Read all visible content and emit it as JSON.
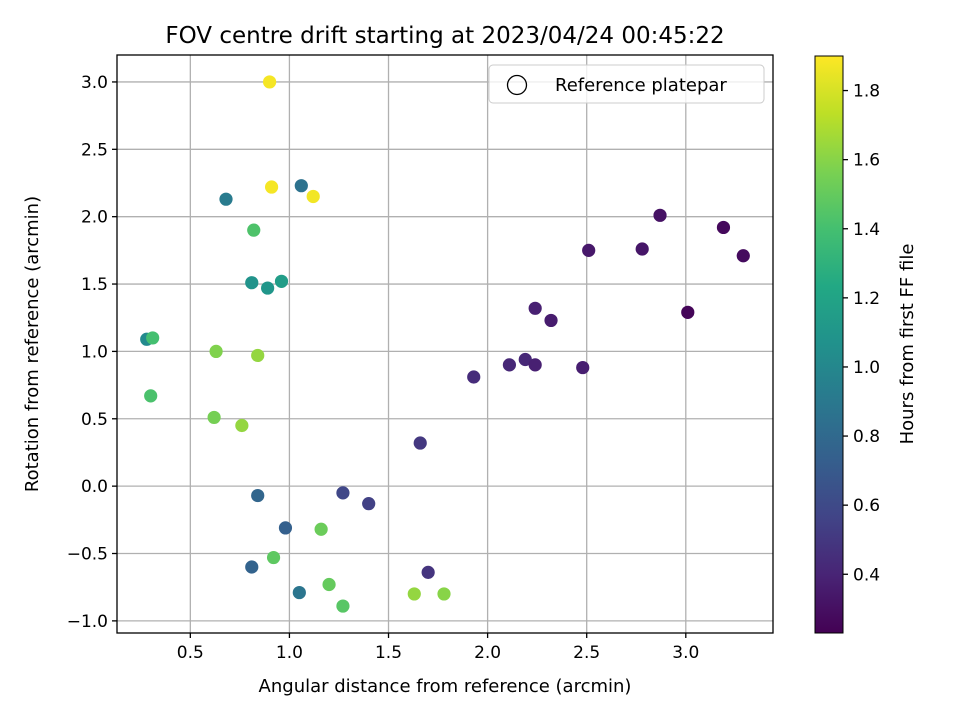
{
  "chart_data": {
    "type": "scatter",
    "title": "FOV centre drift starting at 2023/04/24 00:45:22",
    "xlabel": "Angular distance from reference (arcmin)",
    "ylabel": "Rotation from reference (arcmin)",
    "xlim": [
      0.13,
      3.44
    ],
    "ylim": [
      -1.09,
      3.2
    ],
    "xticks": [
      0.5,
      1.0,
      1.5,
      2.0,
      2.5,
      3.0
    ],
    "xtick_labels": [
      "0.5",
      "1.0",
      "1.5",
      "2.0",
      "2.5",
      "3.0"
    ],
    "yticks": [
      -1.0,
      -0.5,
      0.0,
      0.5,
      1.0,
      1.5,
      2.0,
      2.5,
      3.0
    ],
    "ytick_labels": [
      "−1.0",
      "−0.5",
      "0.0",
      "0.5",
      "1.0",
      "1.5",
      "2.0",
      "2.5",
      "3.0"
    ],
    "grid": true,
    "legend": {
      "position": "top-right",
      "entries": [
        "Reference platepar"
      ]
    },
    "colorbar": {
      "label": "Hours from first FF file",
      "range": [
        0.23,
        1.9
      ],
      "ticks": [
        0.4,
        0.6,
        0.8,
        1.0,
        1.2,
        1.4,
        1.6,
        1.8
      ],
      "tick_labels": [
        "0.4",
        "0.6",
        "0.8",
        "1.0",
        "1.2",
        "1.4",
        "1.6",
        "1.8"
      ],
      "colormap": "viridis"
    },
    "points": [
      {
        "x": 0.9,
        "y": 3.0,
        "c": 1.88
      },
      {
        "x": 0.91,
        "y": 2.22,
        "c": 1.88
      },
      {
        "x": 1.12,
        "y": 2.15,
        "c": 1.87
      },
      {
        "x": 1.06,
        "y": 2.23,
        "c": 0.86
      },
      {
        "x": 0.68,
        "y": 2.13,
        "c": 0.92
      },
      {
        "x": 0.82,
        "y": 1.9,
        "c": 1.43
      },
      {
        "x": 0.81,
        "y": 1.51,
        "c": 1.08
      },
      {
        "x": 0.89,
        "y": 1.47,
        "c": 1.1
      },
      {
        "x": 0.96,
        "y": 1.52,
        "c": 1.15
      },
      {
        "x": 0.28,
        "y": 1.09,
        "c": 1.02
      },
      {
        "x": 0.31,
        "y": 1.1,
        "c": 1.4
      },
      {
        "x": 0.63,
        "y": 1.0,
        "c": 1.58
      },
      {
        "x": 0.84,
        "y": 0.97,
        "c": 1.63
      },
      {
        "x": 0.3,
        "y": 0.67,
        "c": 1.42
      },
      {
        "x": 0.62,
        "y": 0.51,
        "c": 1.55
      },
      {
        "x": 0.76,
        "y": 0.45,
        "c": 1.63
      },
      {
        "x": 0.84,
        "y": -0.07,
        "c": 0.78
      },
      {
        "x": 0.98,
        "y": -0.31,
        "c": 0.74
      },
      {
        "x": 0.81,
        "y": -0.6,
        "c": 0.76
      },
      {
        "x": 0.92,
        "y": -0.53,
        "c": 1.48
      },
      {
        "x": 1.05,
        "y": -0.79,
        "c": 0.88
      },
      {
        "x": 1.16,
        "y": -0.32,
        "c": 1.52
      },
      {
        "x": 1.2,
        "y": -0.73,
        "c": 1.5
      },
      {
        "x": 1.27,
        "y": -0.89,
        "c": 1.46
      },
      {
        "x": 1.27,
        "y": -0.05,
        "c": 0.58
      },
      {
        "x": 1.4,
        "y": -0.13,
        "c": 0.55
      },
      {
        "x": 1.63,
        "y": -0.8,
        "c": 1.63
      },
      {
        "x": 1.78,
        "y": -0.8,
        "c": 1.6
      },
      {
        "x": 1.7,
        "y": -0.64,
        "c": 0.48
      },
      {
        "x": 1.66,
        "y": 0.32,
        "c": 0.5
      },
      {
        "x": 1.93,
        "y": 0.81,
        "c": 0.44
      },
      {
        "x": 2.11,
        "y": 0.9,
        "c": 0.42
      },
      {
        "x": 2.19,
        "y": 0.94,
        "c": 0.42
      },
      {
        "x": 2.24,
        "y": 0.9,
        "c": 0.38
      },
      {
        "x": 2.24,
        "y": 1.32,
        "c": 0.38
      },
      {
        "x": 2.32,
        "y": 1.23,
        "c": 0.36
      },
      {
        "x": 2.48,
        "y": 0.88,
        "c": 0.37
      },
      {
        "x": 2.51,
        "y": 1.75,
        "c": 0.34
      },
      {
        "x": 2.78,
        "y": 1.76,
        "c": 0.33
      },
      {
        "x": 2.87,
        "y": 2.01,
        "c": 0.31
      },
      {
        "x": 3.01,
        "y": 1.29,
        "c": 0.25
      },
      {
        "x": 3.19,
        "y": 1.92,
        "c": 0.27
      },
      {
        "x": 3.29,
        "y": 1.71,
        "c": 0.28
      }
    ]
  }
}
